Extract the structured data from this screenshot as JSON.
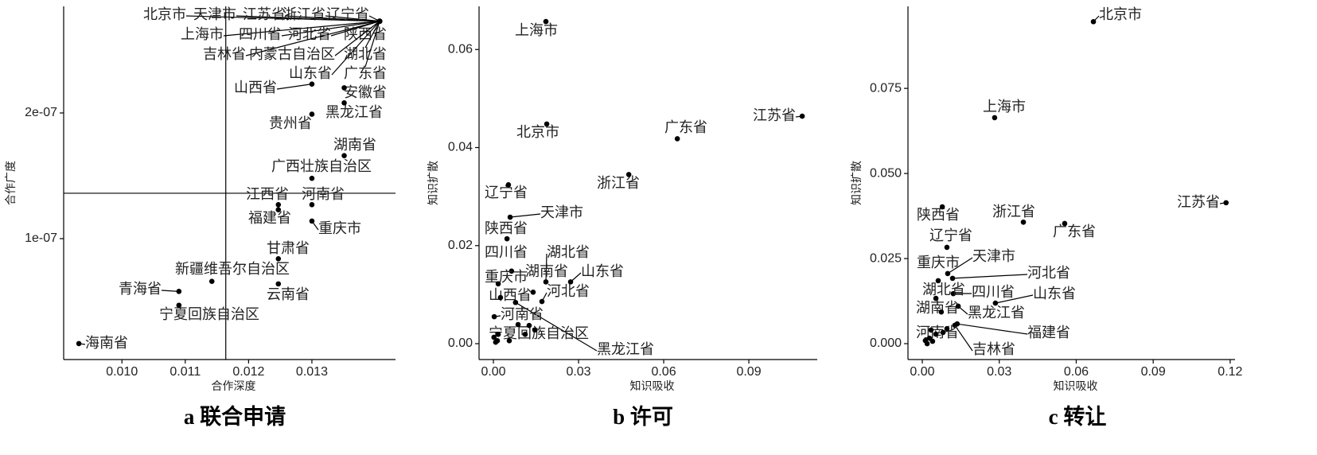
{
  "chart_data": [
    {
      "type": "scatter",
      "title": "a 联合申请",
      "x_label": "合作深度",
      "y_label": "合作广度",
      "color": "#000000",
      "xlim": [
        0.00908,
        0.01432
      ],
      "ylim": [
        3.8e-09,
        2.848e-07
      ],
      "xticks": [
        {
          "value": 0.01,
          "label": "0.010"
        },
        0.011,
        0.012,
        0.013
      ],
      "yticks": [
        {
          "value": 1e-07,
          "label": "1e-07"
        },
        {
          "value": 2e-07,
          "label": "2e-07"
        }
      ],
      "reference_lines": {
        "x": 0.01164,
        "y": 1.361e-07
      },
      "labels": [
        "北京市",
        "天津市",
        "江苏省",
        "浙江省",
        "辽宁省",
        "上海市",
        "四川省",
        "河北省",
        "陕西省",
        "吉林省",
        "内蒙古自治区",
        "湖北省",
        "山东省",
        "广东省",
        "山西省",
        "安徽省",
        "黑龙江省",
        "贵州省",
        "湖南省",
        "广西壮族自治区",
        "江西省",
        "河南省",
        "福建省",
        "重庆市",
        "甘肃省",
        "新疆维吾尔自治区",
        "云南省",
        "青海省",
        "宁夏回族自治区",
        "海南省"
      ],
      "x": [
        0.01407,
        0.01407,
        0.01407,
        0.01407,
        0.01407,
        0.01407,
        0.01407,
        0.01407,
        0.01407,
        0.01407,
        0.01407,
        0.01407,
        0.01407,
        0.01407,
        0.013,
        0.01351,
        0.01351,
        0.013,
        0.01351,
        0.013,
        0.01247,
        0.013,
        0.01247,
        0.013,
        0.01247,
        0.01142,
        0.01247,
        0.0109,
        0.0109,
        0.00932
      ],
      "values": [
        2.73e-07,
        2.73e-07,
        2.73e-07,
        2.73e-07,
        2.73e-07,
        2.73e-07,
        2.73e-07,
        2.73e-07,
        2.73e-07,
        2.73e-07,
        2.73e-07,
        2.73e-07,
        2.73e-07,
        2.73e-07,
        2.23e-07,
        2.2e-07,
        2.08e-07,
        1.99e-07,
        1.66e-07,
        1.48e-07,
        1.27e-07,
        1.27e-07,
        1.23e-07,
        1.14e-07,
        8.4e-08,
        6.6e-08,
        6.4e-08,
        5.8e-08,
        4.7e-08,
        1.65e-08
      ]
    },
    {
      "type": "scatter",
      "title": "b 许可",
      "x_label": "知识吸收",
      "y_label": "知识扩散",
      "color": "#000000",
      "xlim": [
        -0.00505,
        0.1141
      ],
      "ylim": [
        -0.00324,
        0.0688
      ],
      "xticks": [
        {
          "value": 0,
          "label": "0.00"
        },
        {
          "value": 0.03,
          "label": "0.03"
        },
        {
          "value": 0.06,
          "label": "0.06"
        },
        {
          "value": 0.09,
          "label": "0.09"
        }
      ],
      "yticks": [
        {
          "value": 0,
          "label": "0.00"
        },
        {
          "value": 0.02,
          "label": "0.02"
        },
        {
          "value": 0.04,
          "label": "0.04"
        },
        {
          "value": 0.06,
          "label": "0.06"
        }
      ],
      "labels": [
        "上海市",
        "北京市",
        "广东省",
        "江苏省",
        "浙江省",
        "辽宁省",
        "天津市",
        "陕西省",
        "四川省",
        "湖北省",
        "湖南省",
        "山东省",
        "河北省",
        "重庆市",
        "山西省",
        "黑龙江省",
        "河南省",
        "宁夏回族自治区",
        null,
        null,
        null,
        null,
        null,
        null,
        null,
        null
      ],
      "x": [
        0.0185,
        0.0188,
        0.0648,
        0.1088,
        0.0477,
        0.0053,
        0.0059,
        0.0048,
        0.0064,
        0.0185,
        0.014,
        0.0272,
        0.0171,
        0.0017,
        0.0025,
        0.0078,
        0.0003,
        0.0017,
        0.0008,
        0.0014,
        0.0056,
        0.0087,
        0.0126,
        0.0146,
        0.0002,
        0.0112
      ],
      "values": [
        0.0657,
        0.0448,
        0.0418,
        0.0464,
        0.0345,
        0.0324,
        0.0258,
        0.0214,
        0.0148,
        0.0126,
        0.0105,
        0.0126,
        0.0086,
        0.0122,
        0.0094,
        0.0084,
        0.0055,
        0.0019,
        0.0003,
        0.0006,
        0.0006,
        0.0039,
        0.0037,
        0.0028,
        0.0013,
        0.0019
      ]
    },
    {
      "type": "scatter",
      "title": "c 转让",
      "x_label": "知识吸收",
      "y_label": "知识扩散",
      "color": "#000000",
      "xlim": [
        -0.00558,
        0.1219
      ],
      "ylim": [
        -0.00467,
        0.0991
      ],
      "xticks": [
        {
          "value": 0,
          "label": "0.00"
        },
        {
          "value": 0.03,
          "label": "0.03"
        },
        {
          "value": 0.06,
          "label": "0.06"
        },
        {
          "value": 0.09,
          "label": "0.09"
        },
        0.12
      ],
      "yticks": [
        {
          "value": 0,
          "label": "0.000"
        },
        0.025,
        {
          "value": 0.05,
          "label": "0.050"
        },
        0.075
      ],
      "labels": [
        "北京市",
        "上海市",
        "江苏省",
        "浙江省",
        "广东省",
        "陕西省",
        "辽宁省",
        "天津市",
        "重庆市",
        "河北省",
        "四川省",
        "湖北省",
        "山东省",
        "湖南省",
        "黑龙江省",
        "福建省",
        "吉林省",
        "河南省",
        null,
        null,
        null,
        null,
        null,
        null,
        null
      ],
      "x": [
        0.0667,
        0.0282,
        0.1184,
        0.0394,
        0.0555,
        0.0078,
        0.0096,
        0.0099,
        0.0062,
        0.0118,
        0.0121,
        0.0053,
        0.0285,
        0.0074,
        0.014,
        0.0136,
        0.0127,
        0.0034,
        0.0012,
        0.0028,
        0.0053,
        0.0081,
        0.0019,
        0.004,
        0.0096
      ],
      "values": [
        0.0946,
        0.0664,
        0.0414,
        0.0357,
        0.0353,
        0.0402,
        0.0283,
        0.0206,
        0.0185,
        0.0192,
        0.0147,
        0.0133,
        0.0119,
        0.0093,
        0.011,
        0.0058,
        0.0054,
        0.004,
        0.0009,
        0.0016,
        0.0028,
        0.0033,
        0,
        0.0007,
        0.0044
      ]
    }
  ]
}
